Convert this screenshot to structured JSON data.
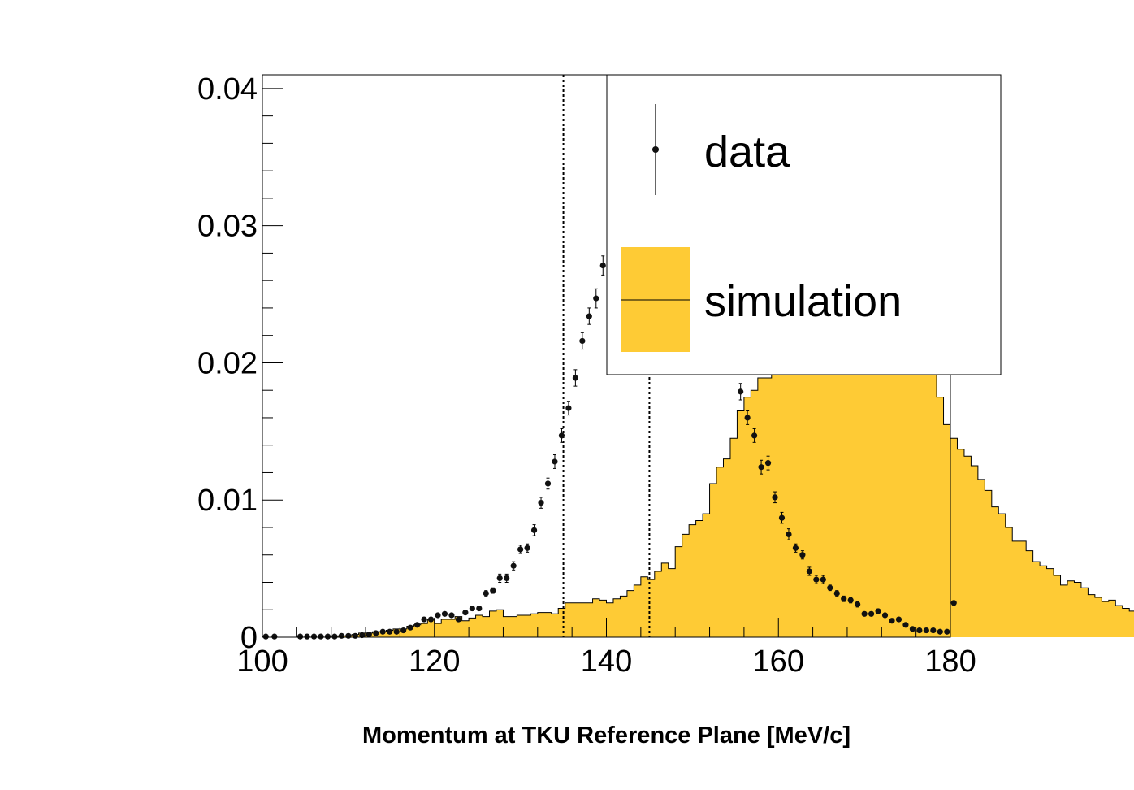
{
  "chart_data": {
    "type": "histogram",
    "title": "",
    "xlabel": "Momentum at TKU Reference Plane [MeV/c]",
    "ylabel": "",
    "xlim": [
      100,
      180
    ],
    "ylim": [
      0,
      0.041
    ],
    "bin_width": 0.8,
    "x_ticks": [
      {
        "value": 100,
        "label": "100"
      },
      {
        "value": 120,
        "label": "120"
      },
      {
        "value": 140,
        "label": "140"
      },
      {
        "value": 160,
        "label": "160"
      },
      {
        "value": 180,
        "label": "180"
      }
    ],
    "y_ticks": [
      {
        "value": 0,
        "label": "0"
      },
      {
        "value": 0.01,
        "label": "0.01"
      },
      {
        "value": 0.02,
        "label": "0.02"
      },
      {
        "value": 0.03,
        "label": "0.03"
      },
      {
        "value": 0.04,
        "label": "0.04"
      }
    ],
    "cut_lines": [
      135,
      145
    ],
    "legend": {
      "position": "top-right",
      "entries": [
        {
          "label": "data",
          "kind": "marker"
        },
        {
          "label": "simulation",
          "kind": "fill"
        }
      ]
    },
    "colors": {
      "simulation_fill": "#fecb35",
      "data_marker": "#111111"
    },
    "series": [
      {
        "name": "simulation",
        "kind": "filled-histogram",
        "values": [
          0,
          0,
          0,
          0,
          0,
          0,
          0,
          0,
          0,
          0,
          0,
          0.0001,
          0.0001,
          0.0002,
          0.0003,
          0.0003,
          0.0004,
          0.0004,
          0.0005,
          0.0006,
          0.0006,
          0.0008,
          0.0009,
          0.001,
          0.0013,
          0.001,
          0.0013,
          0.0013,
          0.0015,
          0.0012,
          0.0014,
          0.0016,
          0.0015,
          0.0019,
          0.002,
          0.0015,
          0.0015,
          0.0016,
          0.0016,
          0.0017,
          0.0018,
          0.0018,
          0.0017,
          0.0021,
          0.0025,
          0.0025,
          0.0025,
          0.0025,
          0.0028,
          0.0027,
          0.0025,
          0.0028,
          0.003,
          0.0034,
          0.0038,
          0.0044,
          0.0042,
          0.0048,
          0.0054,
          0.005,
          0.0066,
          0.0075,
          0.0082,
          0.0085,
          0.009,
          0.0112,
          0.0124,
          0.013,
          0.0145,
          0.0165,
          0.0175,
          0.018,
          0.0189,
          0.0189,
          0.0248,
          0.0248,
          0.0252,
          0.0262,
          0.0272,
          0.0282,
          0.0291,
          0.0285,
          0.03,
          0.0292,
          0.0288,
          0.0291,
          0.0292,
          0.0288,
          0.0285,
          0.028,
          0.0275,
          0.0265,
          0.0258,
          0.0248,
          0.0236,
          0.0225,
          0.0212,
          0.0196,
          0.0175,
          0.0155,
          0.0145,
          0.0137,
          0.0132,
          0.0125,
          0.0115,
          0.0107,
          0.0095,
          0.009,
          0.008,
          0.007,
          0.007,
          0.0063,
          0.0055,
          0.0052,
          0.005,
          0.0045,
          0.0038,
          0.0041,
          0.004,
          0.0036,
          0.0031,
          0.0029,
          0.0026,
          0.0027,
          0.0023,
          0.0021,
          0.0019,
          0.0018,
          0.0017,
          0.0015,
          0.0013,
          0.0012,
          0.0012,
          0.001,
          0.0008,
          0.0008,
          0.0006,
          0.0005,
          0.0004,
          0.0004,
          0.0004,
          0.0003,
          0.0003,
          0.0004,
          0.0005,
          0.0003,
          0.0025
        ]
      },
      {
        "name": "data",
        "kind": "points-with-errors",
        "points": [
          {
            "x": 100.4,
            "y": 5e-05,
            "err": 3e-05
          },
          {
            "x": 101.4,
            "y": 5e-05,
            "err": 3e-05
          },
          {
            "x": 104.4,
            "y": 5e-05,
            "err": 3e-05
          },
          {
            "x": 105.2,
            "y": 5e-05,
            "err": 3e-05
          },
          {
            "x": 106.0,
            "y": 5e-05,
            "err": 3e-05
          },
          {
            "x": 106.8,
            "y": 5e-05,
            "err": 3e-05
          },
          {
            "x": 107.6,
            "y": 5e-05,
            "err": 3e-05
          },
          {
            "x": 108.4,
            "y": 5e-05,
            "err": 3e-05
          },
          {
            "x": 109.2,
            "y": 0.0001,
            "err": 4e-05
          },
          {
            "x": 110.0,
            "y": 0.0001,
            "err": 4e-05
          },
          {
            "x": 110.8,
            "y": 0.0001,
            "err": 4e-05
          },
          {
            "x": 111.6,
            "y": 0.00015,
            "err": 5e-05
          },
          {
            "x": 112.4,
            "y": 0.0002,
            "err": 5e-05
          },
          {
            "x": 113.2,
            "y": 0.0003,
            "err": 6e-05
          },
          {
            "x": 114.0,
            "y": 0.0004,
            "err": 7e-05
          },
          {
            "x": 114.8,
            "y": 0.0004,
            "err": 7e-05
          },
          {
            "x": 115.6,
            "y": 0.0004,
            "err": 7e-05
          },
          {
            "x": 116.4,
            "y": 0.0005,
            "err": 8e-05
          },
          {
            "x": 117.2,
            "y": 0.0007,
            "err": 0.0001
          },
          {
            "x": 118.0,
            "y": 0.0009,
            "err": 0.0001
          },
          {
            "x": 118.8,
            "y": 0.0013,
            "err": 0.00012
          },
          {
            "x": 119.6,
            "y": 0.0013,
            "err": 0.00012
          },
          {
            "x": 120.4,
            "y": 0.0016,
            "err": 0.00013
          },
          {
            "x": 121.2,
            "y": 0.0017,
            "err": 0.00014
          },
          {
            "x": 122.0,
            "y": 0.0016,
            "err": 0.00014
          },
          {
            "x": 122.8,
            "y": 0.0013,
            "err": 0.00012
          },
          {
            "x": 123.6,
            "y": 0.0018,
            "err": 0.00014
          },
          {
            "x": 124.4,
            "y": 0.0021,
            "err": 0.00015
          },
          {
            "x": 125.2,
            "y": 0.0021,
            "err": 0.00015
          },
          {
            "x": 126.0,
            "y": 0.0032,
            "err": 0.0002
          },
          {
            "x": 126.8,
            "y": 0.0034,
            "err": 0.0002
          },
          {
            "x": 127.6,
            "y": 0.0043,
            "err": 0.0003
          },
          {
            "x": 128.4,
            "y": 0.0043,
            "err": 0.0003
          },
          {
            "x": 129.2,
            "y": 0.0052,
            "err": 0.0003
          },
          {
            "x": 130.0,
            "y": 0.0064,
            "err": 0.0003
          },
          {
            "x": 130.8,
            "y": 0.0065,
            "err": 0.0003
          },
          {
            "x": 131.6,
            "y": 0.0078,
            "err": 0.0004
          },
          {
            "x": 132.4,
            "y": 0.0098,
            "err": 0.0004
          },
          {
            "x": 133.2,
            "y": 0.0112,
            "err": 0.0004
          },
          {
            "x": 134.0,
            "y": 0.0128,
            "err": 0.0005
          },
          {
            "x": 134.8,
            "y": 0.0147,
            "err": 0.0005
          },
          {
            "x": 135.6,
            "y": 0.0167,
            "err": 0.0005
          },
          {
            "x": 136.4,
            "y": 0.0189,
            "err": 0.0006
          },
          {
            "x": 137.2,
            "y": 0.0216,
            "err": 0.0006
          },
          {
            "x": 138.0,
            "y": 0.0234,
            "err": 0.0006
          },
          {
            "x": 138.8,
            "y": 0.0247,
            "err": 0.0007
          },
          {
            "x": 139.6,
            "y": 0.0271,
            "err": 0.0007
          },
          {
            "x": 140.4,
            "y": 0.0275,
            "err": 0.0007
          },
          {
            "x": 155.6,
            "y": 0.0179,
            "err": 0.0006
          },
          {
            "x": 156.4,
            "y": 0.016,
            "err": 0.0005
          },
          {
            "x": 157.2,
            "y": 0.0147,
            "err": 0.0005
          },
          {
            "x": 158.0,
            "y": 0.0124,
            "err": 0.0005
          },
          {
            "x": 158.8,
            "y": 0.0127,
            "err": 0.0005
          },
          {
            "x": 159.6,
            "y": 0.0102,
            "err": 0.0004
          },
          {
            "x": 160.4,
            "y": 0.0087,
            "err": 0.0004
          },
          {
            "x": 161.2,
            "y": 0.0075,
            "err": 0.0004
          },
          {
            "x": 162.0,
            "y": 0.0065,
            "err": 0.0003
          },
          {
            "x": 162.8,
            "y": 0.006,
            "err": 0.0003
          },
          {
            "x": 163.6,
            "y": 0.0048,
            "err": 0.0003
          },
          {
            "x": 164.4,
            "y": 0.0042,
            "err": 0.0003
          },
          {
            "x": 165.2,
            "y": 0.0042,
            "err": 0.0003
          },
          {
            "x": 166.0,
            "y": 0.0036,
            "err": 0.0002
          },
          {
            "x": 166.8,
            "y": 0.0032,
            "err": 0.0002
          },
          {
            "x": 167.6,
            "y": 0.0028,
            "err": 0.0002
          },
          {
            "x": 168.4,
            "y": 0.0027,
            "err": 0.0002
          },
          {
            "x": 169.2,
            "y": 0.0024,
            "err": 0.0002
          },
          {
            "x": 170.0,
            "y": 0.0017,
            "err": 0.00015
          },
          {
            "x": 170.8,
            "y": 0.0017,
            "err": 0.00015
          },
          {
            "x": 171.6,
            "y": 0.0019,
            "err": 0.00015
          },
          {
            "x": 172.4,
            "y": 0.0016,
            "err": 0.00014
          },
          {
            "x": 173.2,
            "y": 0.0012,
            "err": 0.00012
          },
          {
            "x": 174.0,
            "y": 0.0013,
            "err": 0.00012
          },
          {
            "x": 174.8,
            "y": 0.0009,
            "err": 0.0001
          },
          {
            "x": 175.6,
            "y": 0.0006,
            "err": 8e-05
          },
          {
            "x": 176.4,
            "y": 0.0005,
            "err": 8e-05
          },
          {
            "x": 177.2,
            "y": 0.0005,
            "err": 8e-05
          },
          {
            "x": 178.0,
            "y": 0.0005,
            "err": 8e-05
          },
          {
            "x": 178.8,
            "y": 0.0004,
            "err": 7e-05
          },
          {
            "x": 179.6,
            "y": 0.0004,
            "err": 7e-05
          },
          {
            "x": 180.4,
            "y": 0.0025,
            "err": 0.00015
          }
        ]
      }
    ]
  }
}
